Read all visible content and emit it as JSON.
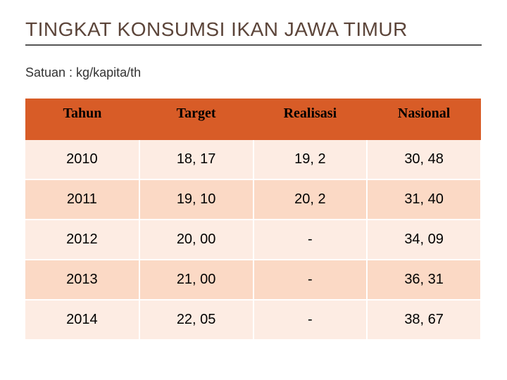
{
  "title": "TINGKAT KONSUMSI IKAN JAWA TIMUR",
  "subtitle": "Satuan  : kg/kapita/th",
  "table": {
    "type": "table",
    "columns": [
      "Tahun",
      "Target",
      "Realisasi",
      "Nasional"
    ],
    "rows": [
      [
        "2010",
        "18, 17",
        "19, 2",
        "30, 48"
      ],
      [
        "2011",
        "19, 10",
        "20, 2",
        "31, 40"
      ],
      [
        "2012",
        "20, 00",
        "-",
        "34, 09"
      ],
      [
        "2013",
        "21, 00",
        "-",
        "36, 31"
      ],
      [
        "2014",
        "22, 05",
        "-",
        "38, 67"
      ]
    ],
    "header_bg": "#d85c27",
    "row_even_bg": "#fdece3",
    "row_odd_bg": "#fbd9c5",
    "header_fontsize": 20,
    "cell_fontsize": 20,
    "header_font_family": "Georgia",
    "cell_font_family": "Arial",
    "text_color": "#000000",
    "border_color": "#ffffff"
  },
  "title_color": "#5c453a",
  "title_fontsize": 28,
  "subtitle_fontsize": 18,
  "background_color": "#ffffff"
}
